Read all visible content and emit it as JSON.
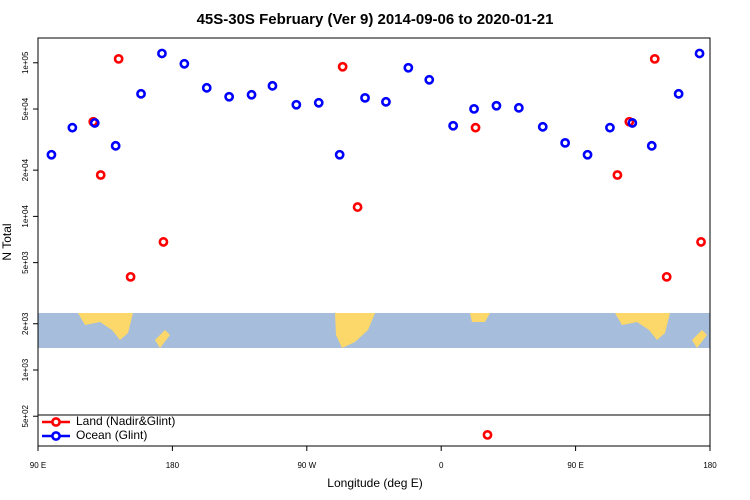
{
  "chart_data": {
    "type": "scatter",
    "title": "45S-30S February (Ver 9)   2014-09-06 to 2020-01-21",
    "x_label": "Longitude (deg E)",
    "y_label": "N Total",
    "log_y": true,
    "legend": "bottom-left",
    "xlim": [
      90,
      540
    ],
    "xticks": [
      {
        "value": 90,
        "label": "90 E"
      },
      180,
      {
        "value": 270,
        "label": "90 W"
      },
      {
        "value": 360,
        "label": "0"
      },
      {
        "value": 450,
        "label": "90 E"
      },
      {
        "value": 540,
        "label": "180"
      }
    ],
    "ylim": [
      320,
      145000
    ],
    "yticks": [
      {
        "value": 100000,
        "label": "1e+05"
      },
      {
        "value": 50000,
        "label": "5e+04"
      },
      {
        "value": 20000,
        "label": "2e+04"
      },
      {
        "value": 10000,
        "label": "1e+04"
      },
      {
        "value": 5000,
        "label": "5e+03"
      },
      {
        "value": 2000,
        "label": "2e+03"
      },
      {
        "value": 1000,
        "label": "1e+03"
      },
      {
        "value": 500,
        "label": "5e+02"
      }
    ],
    "series": [
      {
        "name": "Land (Nadir&Glint)",
        "color": "#ff0000",
        "x": [
          132,
          127,
          144,
          152,
          174,
          294,
          304,
          383,
          391,
          478,
          486,
          503,
          511,
          534
        ],
        "values": [
          18600,
          41300,
          106000,
          4040,
          6820,
          94200,
          11500,
          37800,
          378,
          18600,
          41300,
          106000,
          4040,
          6820
        ]
      },
      {
        "name": "Ocean (Glint)",
        "color": "#0000ff",
        "x": [
          99,
          113,
          128,
          142,
          159,
          173,
          188,
          203,
          218,
          233,
          247,
          263,
          278,
          292,
          309,
          323,
          338,
          352,
          368,
          382,
          397,
          412,
          428,
          443,
          458,
          473,
          488,
          501,
          519,
          533
        ],
        "values": [
          25200,
          37800,
          40600,
          28800,
          62800,
          115000,
          98500,
          68700,
          60100,
          61900,
          70800,
          53300,
          54900,
          25200,
          59100,
          55700,
          92800,
          77500,
          38900,
          50100,
          52500,
          50900,
          38300,
          30100,
          25200,
          37800,
          40600,
          28800,
          62800,
          115000
        ]
      }
    ]
  }
}
